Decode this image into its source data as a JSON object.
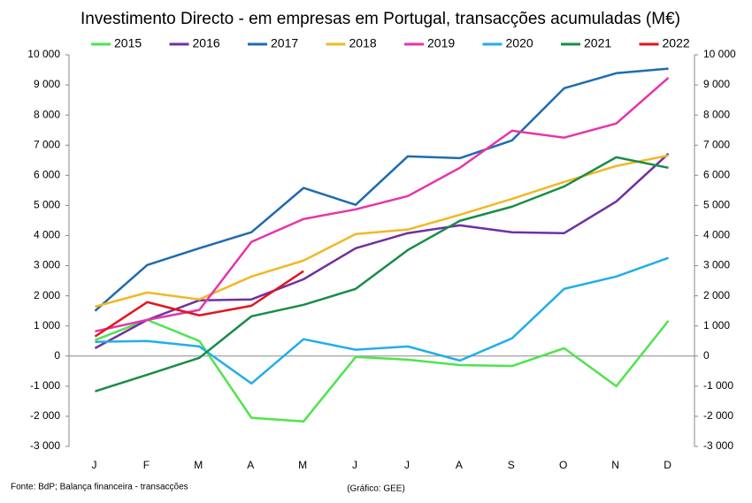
{
  "chart_data": {
    "type": "line",
    "title": "Investimento Directo - em empresas em Portugal, transacções acumuladas (M€)",
    "categories": [
      "J",
      "F",
      "M",
      "A",
      "M",
      "J",
      "J",
      "A",
      "S",
      "O",
      "N",
      "D"
    ],
    "series": [
      {
        "name": "2015",
        "color": "#4ee44e",
        "values": [
          530,
          1200,
          500,
          -2050,
          -2170,
          -30,
          -120,
          -300,
          -330,
          260,
          -1000,
          1170
        ]
      },
      {
        "name": "2016",
        "color": "#7030a0",
        "values": [
          260,
          1200,
          1850,
          1880,
          2550,
          3580,
          4080,
          4340,
          4110,
          4080,
          5130,
          6720
        ]
      },
      {
        "name": "2017",
        "color": "#1f6bb0",
        "values": [
          1500,
          3020,
          3580,
          4110,
          5580,
          5020,
          6630,
          6570,
          7160,
          8890,
          9390,
          9540
        ]
      },
      {
        "name": "2018",
        "color": "#f2b824",
        "values": [
          1640,
          2110,
          1880,
          2640,
          3170,
          4050,
          4200,
          4690,
          5220,
          5780,
          6310,
          6660
        ]
      },
      {
        "name": "2019",
        "color": "#e535ab",
        "values": [
          820,
          1200,
          1530,
          3790,
          4550,
          4870,
          5310,
          6250,
          7480,
          7250,
          7720,
          9240
        ]
      },
      {
        "name": "2020",
        "color": "#22aee8",
        "values": [
          470,
          500,
          320,
          -910,
          560,
          210,
          320,
          -150,
          590,
          2230,
          2640,
          3260
        ]
      },
      {
        "name": "2021",
        "color": "#1a8c48",
        "values": [
          -1170,
          -620,
          -60,
          1320,
          1700,
          2230,
          3520,
          4490,
          4960,
          5630,
          6600,
          6250
        ]
      },
      {
        "name": "2022",
        "color": "#e0161e",
        "values": [
          650,
          1790,
          1350,
          1670,
          2820,
          null,
          null,
          null,
          null,
          null,
          null,
          null
        ]
      }
    ],
    "ylim": [
      -3000,
      10000
    ],
    "yticks": [
      {
        "value": -3000,
        "label": "-3 000"
      },
      {
        "value": -2000,
        "label": "-2 000"
      },
      {
        "value": -1000,
        "label": "-1 000"
      },
      0,
      {
        "value": 1000,
        "label": "1 000"
      },
      {
        "value": 2000,
        "label": "2 000"
      },
      {
        "value": 3000,
        "label": "3 000"
      },
      {
        "value": 4000,
        "label": "4 000"
      },
      {
        "value": 5000,
        "label": "5 000"
      },
      {
        "value": 6000,
        "label": "6 000"
      },
      {
        "value": 7000,
        "label": "7 000"
      },
      {
        "value": 8000,
        "label": "8 000"
      },
      {
        "value": 9000,
        "label": "9 000"
      },
      {
        "value": 10000,
        "label": "10 000"
      }
    ],
    "y2lim": [
      -3000,
      10000
    ],
    "y2ticks": [
      {
        "value": -3000,
        "label": "-3 000"
      },
      {
        "value": -2000,
        "label": "-2 000"
      },
      {
        "value": -1000,
        "label": "-1 000"
      },
      0,
      {
        "value": 1000,
        "label": "1 000"
      },
      {
        "value": 2000,
        "label": "2 000"
      },
      {
        "value": 3000,
        "label": "3 000"
      },
      {
        "value": 4000,
        "label": "4 000"
      },
      {
        "value": 5000,
        "label": "5 000"
      },
      {
        "value": 6000,
        "label": "6 000"
      },
      {
        "value": 7000,
        "label": "7 000"
      },
      {
        "value": 8000,
        "label": "8 000"
      },
      {
        "value": 9000,
        "label": "9 000"
      },
      {
        "value": 10000,
        "label": "10 000"
      }
    ],
    "source": "Fonte: BdP; Balança financeira - transacções",
    "credit": "(Gráfico: GEE)"
  }
}
